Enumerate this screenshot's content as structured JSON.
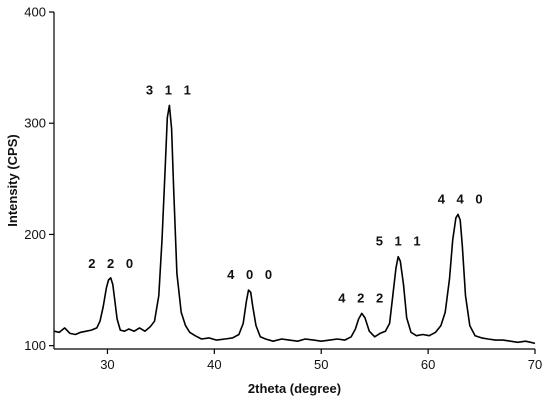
{
  "chart_data": {
    "type": "line",
    "xlabel": "2theta (degree)",
    "ylabel": "Intensity (CPS)",
    "xlim": [
      25,
      70
    ],
    "ylim": [
      97,
      400
    ],
    "xticks": [
      30,
      40,
      50,
      60,
      70
    ],
    "yticks": [
      100,
      200,
      300,
      400
    ],
    "grid": false,
    "legend": "none",
    "line_color": "#000000",
    "series": [
      {
        "x": [
          25.0,
          25.5,
          26.0,
          26.5,
          27.0,
          27.5,
          28.0,
          28.5,
          29.0,
          29.3,
          29.6,
          29.9,
          30.1,
          30.3,
          30.5,
          30.7,
          30.9,
          31.2,
          31.6,
          32.0,
          32.5,
          33.0,
          33.5,
          34.0,
          34.4,
          34.8,
          35.1,
          35.4,
          35.6,
          35.8,
          36.0,
          36.2,
          36.5,
          36.9,
          37.3,
          37.7,
          38.2,
          38.8,
          39.5,
          40.2,
          41.0,
          41.7,
          42.3,
          42.7,
          43.0,
          43.2,
          43.4,
          43.6,
          43.9,
          44.3,
          44.8,
          45.5,
          46.3,
          47.0,
          47.8,
          48.5,
          49.3,
          50.0,
          50.8,
          51.5,
          52.2,
          52.8,
          53.2,
          53.5,
          53.8,
          54.1,
          54.5,
          55.0,
          55.5,
          56.0,
          56.4,
          56.7,
          57.0,
          57.2,
          57.4,
          57.7,
          58.0,
          58.4,
          58.9,
          59.5,
          60.1,
          60.7,
          61.2,
          61.6,
          62.0,
          62.3,
          62.6,
          62.8,
          63.0,
          63.2,
          63.5,
          63.9,
          64.4,
          65.0,
          65.6,
          66.3,
          67.0,
          67.7,
          68.4,
          69.1,
          69.6,
          70.0
        ],
        "y": [
          113,
          112,
          116,
          111,
          110,
          112,
          113,
          114,
          116,
          122,
          135,
          152,
          159,
          161,
          155,
          140,
          124,
          114,
          113,
          115,
          113,
          116,
          113,
          117,
          122,
          145,
          195,
          260,
          305,
          316,
          295,
          240,
          165,
          130,
          118,
          112,
          109,
          106,
          107,
          105,
          106,
          107,
          110,
          120,
          140,
          150,
          148,
          135,
          118,
          108,
          106,
          104,
          106,
          105,
          104,
          106,
          105,
          104,
          105,
          106,
          105,
          108,
          115,
          124,
          129,
          125,
          113,
          108,
          111,
          113,
          120,
          145,
          170,
          180,
          176,
          155,
          125,
          112,
          109,
          110,
          109,
          112,
          118,
          130,
          160,
          195,
          215,
          218,
          213,
          190,
          145,
          118,
          109,
          107,
          106,
          105,
          105,
          104,
          103,
          104,
          103,
          102
        ]
      }
    ],
    "annotations": [
      {
        "text": "2 2 0",
        "x": 30.3,
        "y": 161
      },
      {
        "text": "3 1 1",
        "x": 35.7,
        "y": 317
      },
      {
        "text": "4 0 0",
        "x": 43.3,
        "y": 151
      },
      {
        "text": "4 2 2",
        "x": 53.7,
        "y": 130
      },
      {
        "text": "5 1 1",
        "x": 57.2,
        "y": 181
      },
      {
        "text": "4 4 0",
        "x": 63.0,
        "y": 219
      }
    ]
  }
}
